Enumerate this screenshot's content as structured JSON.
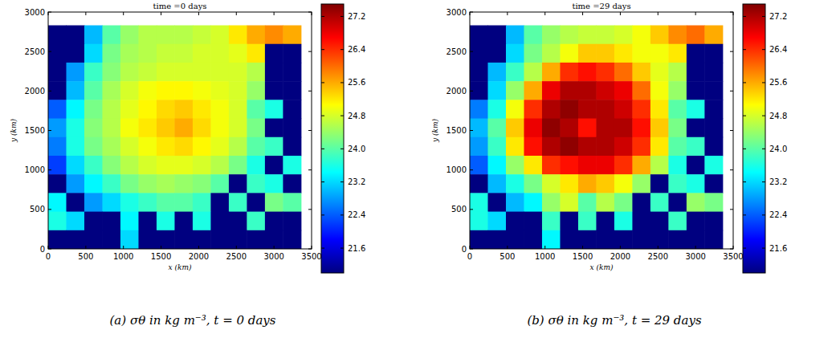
{
  "chart_data": [
    {
      "type": "heatmap",
      "title": "time =0 days",
      "x_label": "x (km)",
      "y_label": "y (km)",
      "caption": "(a) σθ in kg m⁻³, t = 0 days",
      "xlim": [
        0,
        3500
      ],
      "ylim": [
        0,
        3000
      ],
      "xticks": [
        0,
        500,
        1000,
        1500,
        2000,
        2500,
        3000,
        3500
      ],
      "yticks": [
        0,
        500,
        1000,
        1500,
        2000,
        2500,
        3000
      ],
      "x_edges": [
        0,
        240,
        480,
        720,
        960,
        1200,
        1440,
        1680,
        1920,
        2160,
        2400,
        2640,
        2880,
        3120,
        3360
      ],
      "y_edges": [
        2832,
        2596,
        2360,
        2124,
        1888,
        1652,
        1416,
        1180,
        944,
        708,
        472,
        236,
        0
      ],
      "cells": [
        [
          21.0,
          21.0,
          23.0,
          24.0,
          24.4,
          24.6,
          24.6,
          24.6,
          24.7,
          24.8,
          25.2,
          25.6,
          25.8,
          25.6
        ],
        [
          21.0,
          21.0,
          23.2,
          24.2,
          24.5,
          24.6,
          24.7,
          24.7,
          24.8,
          24.8,
          24.9,
          25.2,
          21.0,
          21.0
        ],
        [
          21.0,
          22.8,
          23.8,
          24.3,
          24.6,
          24.7,
          24.8,
          24.8,
          24.8,
          24.8,
          24.8,
          24.6,
          21.0,
          21.0
        ],
        [
          21.0,
          23.0,
          24.0,
          24.5,
          24.8,
          25.0,
          25.1,
          25.1,
          25.0,
          24.9,
          24.8,
          24.4,
          21.0,
          21.0
        ],
        [
          22.4,
          23.4,
          24.2,
          24.6,
          24.9,
          25.1,
          25.3,
          25.4,
          25.2,
          25.0,
          24.8,
          24.0,
          23.6,
          21.0
        ],
        [
          22.8,
          23.6,
          24.3,
          24.6,
          25.0,
          25.2,
          25.4,
          25.6,
          25.3,
          25.0,
          24.8,
          24.2,
          21.0,
          21.0
        ],
        [
          22.6,
          23.6,
          24.2,
          24.5,
          24.8,
          25.0,
          25.2,
          25.3,
          25.1,
          24.9,
          24.6,
          24.0,
          23.8,
          21.0
        ],
        [
          22.2,
          23.2,
          23.8,
          24.3,
          24.6,
          24.8,
          24.9,
          24.9,
          24.8,
          24.6,
          24.2,
          23.6,
          21.0,
          23.6
        ],
        [
          21.0,
          22.8,
          23.4,
          23.8,
          24.2,
          24.4,
          24.5,
          24.4,
          24.3,
          24.0,
          21.0,
          23.8,
          23.6,
          21.0
        ],
        [
          23.4,
          21.0,
          22.8,
          23.2,
          23.6,
          23.8,
          24.0,
          24.0,
          23.8,
          21.0,
          23.8,
          21.0,
          24.2,
          24.0
        ],
        [
          23.6,
          23.2,
          21.0,
          21.0,
          23.4,
          21.0,
          23.6,
          21.0,
          23.6,
          21.0,
          21.0,
          23.8,
          21.0,
          21.0
        ],
        [
          21.0,
          21.0,
          21.0,
          21.0,
          23.2,
          21.0,
          21.0,
          21.0,
          21.0,
          21.0,
          21.0,
          21.0,
          21.0,
          21.0
        ]
      ],
      "colorbar_range": [
        21.0,
        27.5
      ],
      "colorbar_ticks": [
        21.6,
        22.4,
        23.2,
        {
          "value": 24,
          "label": "24.0"
        },
        24.8,
        25.6,
        26.4,
        27.2
      ]
    },
    {
      "type": "heatmap",
      "title": "time =29 days",
      "x_label": "x (km)",
      "y_label": "y (km)",
      "caption": "(b) σθ in kg m⁻³, t = 29 days",
      "xlim": [
        0,
        3500
      ],
      "ylim": [
        0,
        3000
      ],
      "xticks": [
        0,
        500,
        1000,
        1500,
        2000,
        2500,
        3000,
        3500
      ],
      "yticks": [
        0,
        500,
        1000,
        1500,
        2000,
        2500,
        3000
      ],
      "x_edges": [
        0,
        240,
        480,
        720,
        960,
        1200,
        1440,
        1680,
        1920,
        2160,
        2400,
        2640,
        2880,
        3120,
        3360
      ],
      "y_edges": [
        2832,
        2596,
        2360,
        2124,
        1888,
        1652,
        1416,
        1180,
        944,
        708,
        472,
        236,
        0
      ],
      "cells": [
        [
          21.0,
          21.0,
          23.0,
          24.0,
          24.4,
          24.6,
          24.7,
          24.7,
          24.8,
          25.0,
          25.4,
          25.8,
          26.0,
          25.6
        ],
        [
          21.0,
          21.0,
          23.2,
          24.2,
          24.6,
          25.0,
          25.4,
          25.4,
          25.2,
          25.0,
          25.0,
          25.2,
          21.0,
          21.0
        ],
        [
          21.0,
          23.0,
          23.8,
          24.6,
          25.6,
          26.4,
          26.6,
          26.4,
          26.0,
          25.4,
          24.9,
          24.6,
          21.0,
          21.0
        ],
        [
          21.0,
          23.2,
          24.4,
          25.6,
          26.8,
          27.2,
          27.2,
          27.0,
          26.8,
          26.0,
          25.0,
          24.4,
          21.0,
          21.0
        ],
        [
          22.6,
          23.6,
          25.0,
          26.4,
          27.2,
          27.4,
          27.2,
          27.2,
          27.0,
          26.4,
          25.2,
          24.0,
          23.6,
          21.0
        ],
        [
          23.0,
          24.0,
          25.4,
          26.8,
          27.4,
          27.2,
          26.6,
          27.2,
          27.2,
          26.6,
          25.4,
          24.2,
          21.0,
          21.0
        ],
        [
          22.8,
          23.8,
          25.2,
          26.6,
          27.2,
          27.4,
          27.2,
          27.2,
          27.0,
          26.4,
          25.2,
          24.0,
          23.8,
          21.0
        ],
        [
          22.4,
          23.4,
          24.4,
          25.2,
          26.4,
          26.6,
          26.8,
          26.8,
          26.4,
          25.6,
          24.6,
          23.6,
          21.0,
          23.6
        ],
        [
          21.0,
          23.0,
          23.6,
          24.2,
          24.8,
          25.2,
          25.6,
          25.4,
          25.0,
          24.4,
          21.0,
          23.8,
          23.6,
          21.0
        ],
        [
          23.6,
          21.0,
          23.0,
          23.4,
          24.4,
          24.8,
          24.0,
          24.6,
          24.2,
          21.0,
          23.8,
          21.0,
          24.4,
          24.2
        ],
        [
          23.6,
          23.2,
          21.0,
          21.0,
          23.8,
          21.0,
          23.8,
          21.0,
          23.6,
          21.0,
          21.0,
          23.8,
          21.0,
          21.0
        ],
        [
          21.0,
          21.0,
          21.0,
          21.0,
          23.4,
          21.0,
          21.0,
          21.0,
          21.0,
          21.0,
          21.0,
          21.0,
          21.0,
          21.0
        ]
      ],
      "colorbar_range": [
        21.0,
        27.5
      ],
      "colorbar_ticks": [
        21.6,
        22.4,
        23.2,
        {
          "value": 24,
          "label": "24.0"
        },
        24.8,
        25.6,
        26.4,
        27.2
      ]
    }
  ]
}
